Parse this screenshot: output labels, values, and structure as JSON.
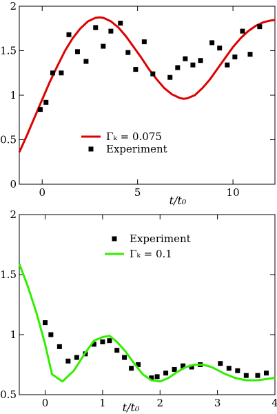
{
  "chart_data": [
    {
      "type": "line",
      "xlabel": "t/t₀",
      "ylabel": "",
      "xlim": [
        -1.2,
        12.2
      ],
      "ylim": [
        0,
        2
      ],
      "xticks": [
        0,
        5,
        10
      ],
      "yticks": [
        0,
        0.5,
        1,
        1.5,
        2
      ],
      "xtick_labels": [
        "0",
        "5",
        "10"
      ],
      "ytick_labels": [
        "0",
        "0.5",
        "1",
        "1.5",
        "2"
      ],
      "legend_position": "lower-center",
      "series": [
        {
          "name": "Γₖ = 0.075",
          "kind": "line",
          "color": "#dd0000",
          "x": [
            -1.2,
            -0.8,
            -0.4,
            0,
            0.4,
            0.8,
            1.2,
            1.6,
            2.0,
            2.4,
            2.8,
            3.0,
            3.2,
            3.6,
            4.0,
            4.4,
            4.8,
            5.2,
            5.6,
            6.0,
            6.4,
            6.8,
            7.2,
            7.4,
            7.6,
            8.0,
            8.4,
            8.8,
            9.2,
            9.6,
            10.0,
            10.4,
            10.8,
            11.2,
            11.6,
            12.0,
            12.2
          ],
          "y": [
            0.36,
            0.55,
            0.75,
            0.95,
            1.15,
            1.33,
            1.5,
            1.64,
            1.75,
            1.83,
            1.87,
            1.875,
            1.87,
            1.83,
            1.76,
            1.66,
            1.54,
            1.42,
            1.29,
            1.18,
            1.08,
            1.01,
            0.97,
            0.96,
            0.965,
            1.0,
            1.08,
            1.18,
            1.3,
            1.42,
            1.54,
            1.64,
            1.72,
            1.78,
            1.82,
            1.84,
            1.845
          ]
        },
        {
          "name": "Experiment",
          "kind": "scatter",
          "color": "#000000",
          "x": [
            -0.1,
            0.2,
            0.55,
            1.0,
            1.4,
            1.85,
            2.3,
            2.8,
            3.2,
            3.6,
            4.1,
            4.5,
            4.9,
            5.35,
            5.8,
            6.7,
            7.1,
            7.5,
            7.9,
            8.3,
            8.9,
            9.3,
            9.7,
            10.1,
            10.5,
            10.9,
            11.4
          ],
          "y": [
            0.84,
            0.92,
            1.25,
            1.25,
            1.68,
            1.49,
            1.38,
            1.76,
            1.55,
            1.72,
            1.81,
            1.48,
            1.29,
            1.6,
            1.24,
            1.2,
            1.31,
            1.41,
            1.34,
            1.39,
            1.59,
            1.53,
            1.34,
            1.43,
            1.72,
            1.46,
            1.77
          ]
        }
      ]
    },
    {
      "type": "line",
      "xlabel": "t/t₀",
      "ylabel": "",
      "xlim": [
        -0.45,
        4.0
      ],
      "ylim": [
        0.5,
        2
      ],
      "xticks": [
        0,
        1,
        2,
        3,
        4
      ],
      "yticks": [
        0.5,
        1,
        1.5,
        2
      ],
      "xtick_labels": [
        "0",
        "1",
        "2",
        "3",
        "4"
      ],
      "ytick_labels": [
        "0.5",
        "1",
        "1.5",
        "2"
      ],
      "legend_position": "upper-center",
      "series": [
        {
          "name": "Experiment",
          "kind": "scatter",
          "color": "#000000",
          "x": [
            0.0,
            0.1,
            0.25,
            0.4,
            0.55,
            0.7,
            0.85,
            1.0,
            1.12,
            1.25,
            1.38,
            1.5,
            1.62,
            1.85,
            1.95,
            2.1,
            2.25,
            2.4,
            2.55,
            2.7,
            3.05,
            3.2,
            3.35,
            3.5,
            3.7,
            3.85
          ],
          "y": [
            1.1,
            1.0,
            0.9,
            0.78,
            0.81,
            0.84,
            0.92,
            0.94,
            0.95,
            0.87,
            0.81,
            0.72,
            0.75,
            0.64,
            0.65,
            0.68,
            0.71,
            0.74,
            0.73,
            0.75,
            0.76,
            0.72,
            0.7,
            0.66,
            0.66,
            0.68
          ]
        },
        {
          "name": "Γₖ = 0.1",
          "kind": "line",
          "color": "#33ee00",
          "x": [
            -0.45,
            -0.3,
            -0.15,
            0.0,
            0.12,
            0.3,
            0.5,
            0.7,
            0.85,
            1.0,
            1.12,
            1.25,
            1.4,
            1.55,
            1.7,
            1.85,
            2.0,
            2.15,
            2.3,
            2.45,
            2.6,
            2.75,
            2.9,
            3.1,
            3.3,
            3.5,
            3.7,
            3.85,
            4.0
          ],
          "y": [
            1.59,
            1.4,
            1.18,
            0.92,
            0.67,
            0.61,
            0.7,
            0.85,
            0.95,
            0.98,
            0.99,
            0.94,
            0.86,
            0.76,
            0.67,
            0.62,
            0.61,
            0.64,
            0.69,
            0.73,
            0.75,
            0.75,
            0.73,
            0.68,
            0.64,
            0.62,
            0.62,
            0.63,
            0.64
          ]
        }
      ]
    }
  ]
}
